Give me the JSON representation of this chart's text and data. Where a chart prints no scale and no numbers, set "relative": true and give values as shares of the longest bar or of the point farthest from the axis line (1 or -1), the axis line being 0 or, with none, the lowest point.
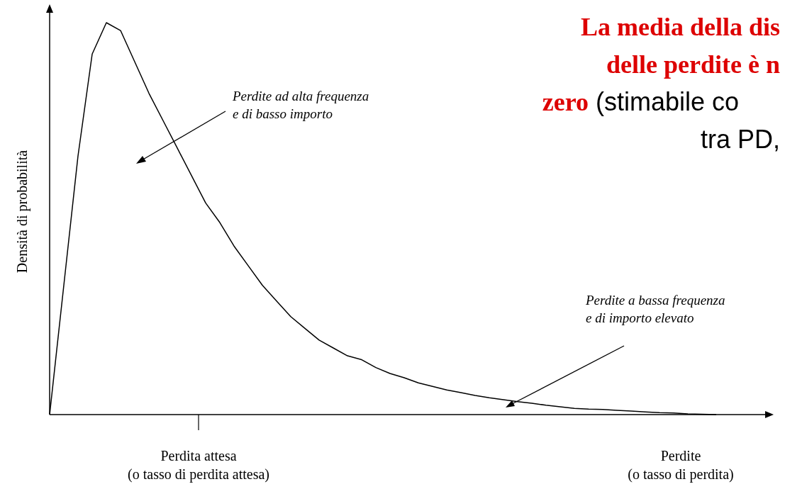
{
  "chart_data": {
    "type": "line",
    "relative": true,
    "title": "La media della dis\ndelle perdite è n\nzero",
    "subtitle": "(stimabile co\ntra PD,",
    "ylabel": "Densità di probabilità",
    "xlabel": "Perdite\n(o tasso di perdita)",
    "categories": [
      null,
      null,
      null,
      null,
      null,
      null,
      null,
      null,
      null,
      null,
      null,
      null,
      null,
      null,
      null,
      null,
      null,
      null,
      null,
      null,
      null,
      null,
      null,
      null,
      null,
      null,
      null,
      null,
      null,
      null,
      null,
      null,
      null,
      null,
      null,
      null,
      null,
      null,
      null,
      null,
      null,
      null,
      null,
      null,
      null,
      null,
      null,
      null
    ],
    "series": [
      {
        "color": "#000000",
        "values": [
          0,
          0.33,
          0.66,
          0.92,
          1,
          0.98,
          0.9,
          0.82,
          0.75,
          0.68,
          0.61,
          0.54,
          0.49,
          0.43,
          0.38,
          0.33,
          0.29,
          0.25,
          0.22,
          0.19,
          0.17,
          0.15,
          0.14,
          0.12,
          0.105,
          0.094,
          0.081,
          0.072,
          0.063,
          0.056,
          0.049,
          0.043,
          0.038,
          0.033,
          0.029,
          0.024,
          0.02,
          0.016,
          0.014,
          0.013,
          0.011,
          0.009,
          0.007,
          0.005,
          0.004,
          0.002,
          0.001,
          0
        ]
      }
    ],
    "annotations": [
      "Perdite ad alta frequenza\ne di basso importo",
      "Perdite a bassa frequenza\ne  di importo elevato",
      "Perdita attesa\n(o tasso di perdita attesa)"
    ],
    "data_labels": false
  }
}
